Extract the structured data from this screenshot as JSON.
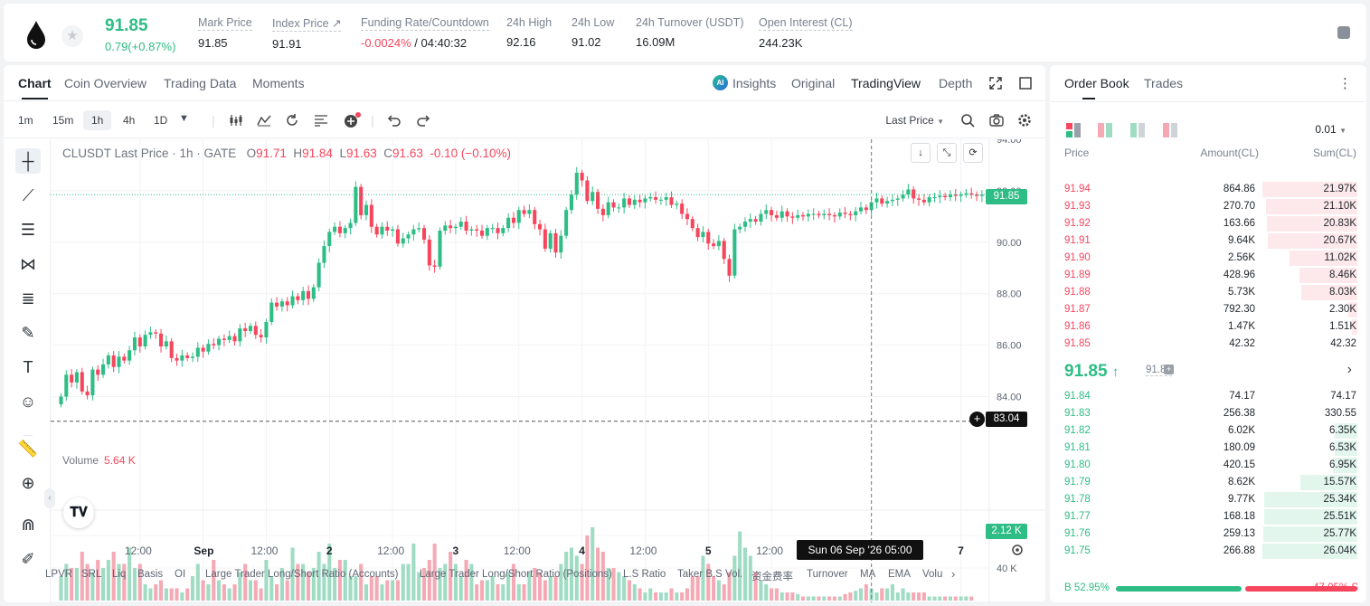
{
  "ticker": {
    "price": "91.85",
    "change": "0.79(+0.87%)",
    "stats": [
      {
        "label": "Mark Price",
        "value": "91.85"
      },
      {
        "label": "Index Price ↗",
        "value": "91.91"
      },
      {
        "label": "Funding Rate/Countdown",
        "value_neg": "-0.0024%",
        "value": " / 04:40:32"
      },
      {
        "label": "24h High",
        "value": "92.16"
      },
      {
        "label": "24h Low",
        "value": "91.02"
      },
      {
        "label": "24h Turnover (USDT)",
        "value": "16.09M"
      },
      {
        "label": "Open Interest (CL)",
        "value": "244.23K"
      }
    ]
  },
  "chart_tabs": [
    "Chart",
    "Coin Overview",
    "Trading Data",
    "Moments"
  ],
  "view_tabs": {
    "insights": "Insights",
    "original": "Original",
    "tradingview": "TradingView",
    "depth": "Depth",
    "ai": "AI"
  },
  "timeframes": [
    "1m",
    "15m",
    "1h",
    "4h",
    "1D"
  ],
  "price_source": "Last Price",
  "legend": {
    "title": "CLUSDT Last Price · 1h · GATE",
    "o_label": "O",
    "o": "91.71",
    "h_label": "H",
    "h": "91.84",
    "l_label": "L",
    "l": "91.63",
    "c_label": "C",
    "c": "91.63",
    "chg": "-0.10 (−0.10%)"
  },
  "volume_legend": {
    "label": "Volume",
    "value": "5.64 K"
  },
  "price_tags": {
    "last": "91.85",
    "cursor": "83.04",
    "volume": "2.12 K"
  },
  "crosshair_time": "Sun 06 Sep '26   05:00",
  "colors": {
    "up": "#2ebd85",
    "down": "#f6465d",
    "up_vol": "#9fdcc3",
    "down_vol": "#f5a9b4"
  },
  "chart_data": {
    "type": "candlestick",
    "price_ylim": [
      82.4,
      94.0
    ],
    "volume_ylim": [
      0,
      100
    ],
    "price_ticks": [
      "94.00",
      "92.00",
      "90.00",
      "88.00",
      "86.00",
      "84.00"
    ],
    "volume_ticks": [
      "80 K",
      "40 K"
    ],
    "x_ticks": [
      {
        "label": "12:00",
        "bold": false,
        "i": 15
      },
      {
        "label": "Sep",
        "bold": true,
        "i": 27
      },
      {
        "label": "12:00",
        "bold": false,
        "i": 39
      },
      {
        "label": "2",
        "bold": true,
        "i": 51
      },
      {
        "label": "12:00",
        "bold": false,
        "i": 63
      },
      {
        "label": "3",
        "bold": true,
        "i": 75
      },
      {
        "label": "12:00",
        "bold": false,
        "i": 87
      },
      {
        "label": "4",
        "bold": true,
        "i": 99
      },
      {
        "label": "12:00",
        "bold": false,
        "i": 111
      },
      {
        "label": "5",
        "bold": true,
        "i": 123
      },
      {
        "label": "12:00",
        "bold": false,
        "i": 135
      },
      {
        "label": "7",
        "bold": true,
        "i": 171
      }
    ],
    "closes": [
      84.0,
      84.85,
      84.55,
      84.95,
      84.2,
      84.05,
      85.05,
      84.85,
      85.25,
      85.6,
      85.15,
      85.55,
      85.4,
      85.8,
      86.3,
      85.95,
      86.4,
      86.5,
      86.45,
      85.95,
      86.15,
      85.5,
      85.4,
      85.6,
      85.5,
      85.55,
      85.9,
      85.75,
      86.05,
      86.0,
      86.25,
      86.2,
      86.35,
      86.15,
      86.65,
      86.55,
      86.75,
      86.4,
      86.3,
      86.9,
      87.65,
      87.5,
      87.7,
      87.55,
      87.9,
      87.75,
      88.1,
      87.8,
      88.25,
      89.2,
      89.85,
      90.4,
      90.6,
      90.35,
      90.55,
      90.75,
      92.15,
      91.05,
      91.45,
      90.6,
      90.3,
      90.6,
      90.45,
      90.5,
      89.95,
      90.15,
      90.3,
      90.5,
      90.55,
      90.1,
      89.1,
      89.05,
      90.45,
      90.65,
      90.55,
      90.6,
      90.8,
      90.45,
      90.5,
      90.45,
      90.25,
      90.55,
      90.55,
      90.35,
      90.55,
      90.95,
      90.75,
      91.25,
      91.1,
      91.25,
      90.7,
      90.5,
      89.75,
      90.35,
      89.6,
      90.25,
      91.25,
      91.85,
      92.7,
      92.4,
      91.6,
      91.95,
      91.3,
      91.05,
      91.55,
      91.35,
      91.35,
      91.7,
      91.45,
      91.65,
      91.55,
      91.7,
      91.75,
      91.65,
      91.65,
      91.75,
      91.45,
      91.5,
      91.1,
      90.9,
      90.55,
      90.2,
      90.4,
      89.95,
      89.85,
      90.05,
      89.35,
      88.7,
      90.5,
      90.6,
      90.8,
      90.9,
      90.8,
      91.1,
      91.25,
      91.05,
      90.95,
      91.2,
      91.0,
      90.95,
      91.05,
      91.0,
      91.1,
      91.1,
      91.05,
      91.1,
      91.05,
      91.0,
      91.15,
      91.1,
      91.05,
      91.2,
      91.35,
      91.25,
      91.55,
      91.7,
      91.5,
      91.6,
      91.65,
      91.7,
      91.85,
      92.05,
      91.7,
      91.65,
      91.55,
      91.75,
      91.75,
      91.8,
      91.75,
      91.85,
      91.8,
      91.85,
      91.9,
      91.85,
      91.8,
      91.85
    ],
    "volumes": [
      30,
      45,
      40,
      40,
      60,
      45,
      35,
      50,
      40,
      50,
      60,
      45,
      45,
      65,
      40,
      45,
      20,
      15,
      20,
      25,
      15,
      15,
      15,
      10,
      15,
      30,
      45,
      25,
      20,
      50,
      25,
      20,
      15,
      20,
      35,
      45,
      25,
      25,
      15,
      50,
      30,
      20,
      40,
      25,
      65,
      45,
      45,
      35,
      40,
      60,
      45,
      70,
      40,
      50,
      50,
      30,
      30,
      45,
      20,
      30,
      30,
      20,
      25,
      25,
      25,
      45,
      45,
      70,
      35,
      40,
      50,
      70,
      40,
      45,
      60,
      45,
      30,
      50,
      45,
      20,
      25,
      25,
      30,
      20,
      20,
      35,
      45,
      20,
      20,
      35,
      40,
      35,
      25,
      30,
      30,
      45,
      60,
      65,
      55,
      45,
      80,
      90,
      65,
      60,
      40,
      40,
      35,
      30,
      25,
      20,
      15,
      10,
      15,
      10,
      10,
      10,
      15,
      10,
      10,
      15,
      30,
      30,
      55,
      45,
      30,
      25,
      20,
      35,
      55,
      85,
      65,
      55,
      35,
      25,
      20,
      15,
      15,
      10,
      10,
      10,
      8,
      5,
      5,
      5,
      5,
      5,
      5,
      5,
      5,
      8,
      10,
      12,
      15,
      20,
      15,
      10,
      15,
      15,
      20,
      10,
      15,
      10,
      10,
      10,
      10,
      5,
      5,
      5,
      5,
      5,
      5,
      5,
      5,
      5
    ]
  },
  "indicators": [
    "LPVR",
    "SRL",
    "Liq",
    "Basis",
    "OI",
    "Large Trader Long/Short Ratio (Accounts)",
    "Large Trader Long/Short Ratio (Positions)",
    "L.S Ratio",
    "Taker B.S Vol.",
    "资金费率",
    "Turnover",
    "MA",
    "EMA",
    "Volu"
  ],
  "orderbook": {
    "tabs": [
      "Order Book",
      "Trades"
    ],
    "precision": "0.01",
    "headers": {
      "price": "Price",
      "amount": "Amount(CL)",
      "sum": "Sum(CL)"
    },
    "asks": [
      {
        "price": "91.94",
        "amount": "864.86",
        "sum": "21.97K",
        "depth": 1.0
      },
      {
        "price": "91.93",
        "amount": "270.70",
        "sum": "21.10K",
        "depth": 0.96
      },
      {
        "price": "91.92",
        "amount": "163.66",
        "sum": "20.83K",
        "depth": 0.95
      },
      {
        "price": "91.91",
        "amount": "9.64K",
        "sum": "20.67K",
        "depth": 0.94
      },
      {
        "price": "91.90",
        "amount": "2.56K",
        "sum": "11.02K",
        "depth": 0.71
      },
      {
        "price": "91.89",
        "amount": "428.96",
        "sum": "8.46K",
        "depth": 0.61
      },
      {
        "price": "91.88",
        "amount": "5.73K",
        "sum": "8.03K",
        "depth": 0.59
      },
      {
        "price": "91.87",
        "amount": "792.30",
        "sum": "2.30K",
        "depth": 0.1
      },
      {
        "price": "91.86",
        "amount": "1.47K",
        "sum": "1.51K",
        "depth": 0.06
      },
      {
        "price": "91.85",
        "amount": "42.32",
        "sum": "42.32",
        "depth": 0.0
      }
    ],
    "mid": {
      "price": "91.85",
      "arrow": "↑",
      "mark": "91.85"
    },
    "bids": [
      {
        "price": "91.84",
        "amount": "74.17",
        "sum": "74.17",
        "depth": 0.0
      },
      {
        "price": "91.83",
        "amount": "256.38",
        "sum": "330.55",
        "depth": 0.0
      },
      {
        "price": "91.82",
        "amount": "6.02K",
        "sum": "6.35K",
        "depth": 0.24
      },
      {
        "price": "91.81",
        "amount": "180.09",
        "sum": "6.53K",
        "depth": 0.24
      },
      {
        "price": "91.80",
        "amount": "420.15",
        "sum": "6.95K",
        "depth": 0.26
      },
      {
        "price": "91.79",
        "amount": "8.62K",
        "sum": "15.57K",
        "depth": 0.6
      },
      {
        "price": "91.78",
        "amount": "9.77K",
        "sum": "25.34K",
        "depth": 0.98
      },
      {
        "price": "91.77",
        "amount": "168.18",
        "sum": "25.51K",
        "depth": 0.98
      },
      {
        "price": "91.76",
        "amount": "259.13",
        "sum": "25.77K",
        "depth": 0.99
      },
      {
        "price": "91.75",
        "amount": "266.88",
        "sum": "26.04K",
        "depth": 1.0
      }
    ],
    "buy_ratio": {
      "label": "B",
      "value": "52.95%",
      "fraction": 0.5295
    },
    "sell_ratio": {
      "label": "S",
      "value": "47.05%",
      "fraction": 0.4705
    }
  }
}
